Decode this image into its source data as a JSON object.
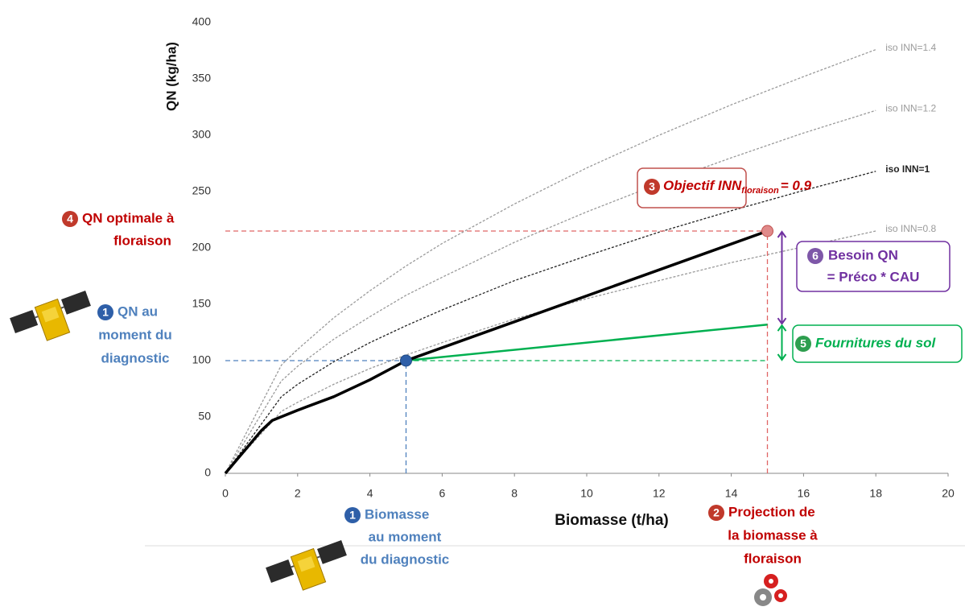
{
  "chart_data": {
    "type": "line",
    "xlabel": "Biomasse (t/ha)",
    "ylabel": "QN (kg/ha)",
    "xlim": [
      0,
      20
    ],
    "xticks": [
      0,
      2,
      4,
      6,
      8,
      10,
      12,
      14,
      16,
      18,
      20
    ],
    "ylim": [
      0,
      400
    ],
    "yticks": [
      0,
      50,
      100,
      150,
      200,
      250,
      300,
      350,
      400
    ],
    "series": [
      {
        "name": "iso INN=1.4",
        "color": "#9a9a9a",
        "x": [
          0,
          1.55,
          2,
          3,
          4,
          5,
          6,
          8,
          10,
          12,
          14,
          16,
          18
        ],
        "values": [
          0,
          96,
          110,
          138,
          162,
          184,
          204,
          239,
          271,
          300,
          327,
          352,
          376
        ]
      },
      {
        "name": "iso INN=1.2",
        "color": "#9a9a9a",
        "x": [
          0,
          1.55,
          2,
          3,
          4,
          5,
          6,
          8,
          10,
          12,
          14,
          16,
          18
        ],
        "values": [
          0,
          82,
          95,
          119,
          139,
          158,
          174,
          205,
          232,
          257,
          280,
          302,
          322
        ]
      },
      {
        "name": "iso INN=1",
        "color": "#222222",
        "x": [
          0,
          1.55,
          2,
          3,
          4,
          5,
          6,
          8,
          10,
          12,
          14,
          16,
          18
        ],
        "values": [
          0,
          68,
          79,
          99,
          116,
          131,
          145,
          171,
          193,
          214,
          233,
          251,
          268
        ]
      },
      {
        "name": "iso INN=0.8",
        "color": "#9a9a9a",
        "x": [
          0,
          1.55,
          2,
          3,
          4,
          5,
          6,
          8,
          10,
          12,
          14,
          16,
          18
        ],
        "values": [
          0,
          55,
          63,
          79,
          93,
          105,
          116,
          137,
          155,
          171,
          187,
          201,
          215
        ]
      }
    ],
    "trajectory": {
      "color": "#000000",
      "x": [
        0,
        1,
        1.3,
        2,
        3,
        4,
        5,
        15
      ],
      "values": [
        0,
        38,
        47,
        56,
        68,
        83,
        100,
        215
      ]
    },
    "soil_supply": {
      "color": "#00b050",
      "x": [
        5,
        15
      ],
      "values": [
        100,
        132
      ]
    },
    "guides": [
      {
        "color": "#4f81bd",
        "x": [
          0,
          5
        ],
        "values": [
          100,
          100
        ]
      },
      {
        "color": "#4f81bd",
        "x": [
          5,
          5
        ],
        "values": [
          0,
          100
        ]
      },
      {
        "color": "#e06666",
        "x": [
          0,
          15
        ],
        "values": [
          215,
          215
        ]
      },
      {
        "color": "#e06666",
        "x": [
          15,
          15
        ],
        "values": [
          0,
          215
        ]
      },
      {
        "color": "#00b050",
        "x": [
          5,
          15
        ],
        "values": [
          100,
          100
        ]
      }
    ],
    "annotations": [
      {
        "badge": "4",
        "lines": [
          "QN optimale à",
          "floraison"
        ],
        "color": "#c00000",
        "badge_color": "#c0392b"
      },
      {
        "badge": "1",
        "lines": [
          "QN au",
          "moment du",
          "diagnostic"
        ],
        "color": "#4f81bd",
        "badge_color": "#2e5fa8"
      },
      {
        "badge": "1",
        "lines": [
          "Biomasse",
          "au moment",
          "du diagnostic"
        ],
        "color": "#4f81bd",
        "badge_color": "#2e5fa8"
      },
      {
        "badge": "2",
        "lines": [
          "Projection de",
          "la biomasse à",
          "floraison"
        ],
        "color": "#c00000",
        "badge_color": "#c0392b"
      },
      {
        "badge": "6",
        "lines": [
          "Besoin QN",
          "= Préco * CAU"
        ],
        "color": "#7030a0",
        "badge_color": "#7e57a8"
      },
      {
        "badge": "5",
        "lines": [
          "Fournitures du sol"
        ],
        "color": "#00b050",
        "badge_color": "#2e9e4f"
      }
    ],
    "objective": {
      "badge": "3",
      "text": "Objectif INN",
      "sub": "floraison",
      "after": "= 0.9",
      "color": "#c00000",
      "badge_color": "#c0392b"
    }
  }
}
